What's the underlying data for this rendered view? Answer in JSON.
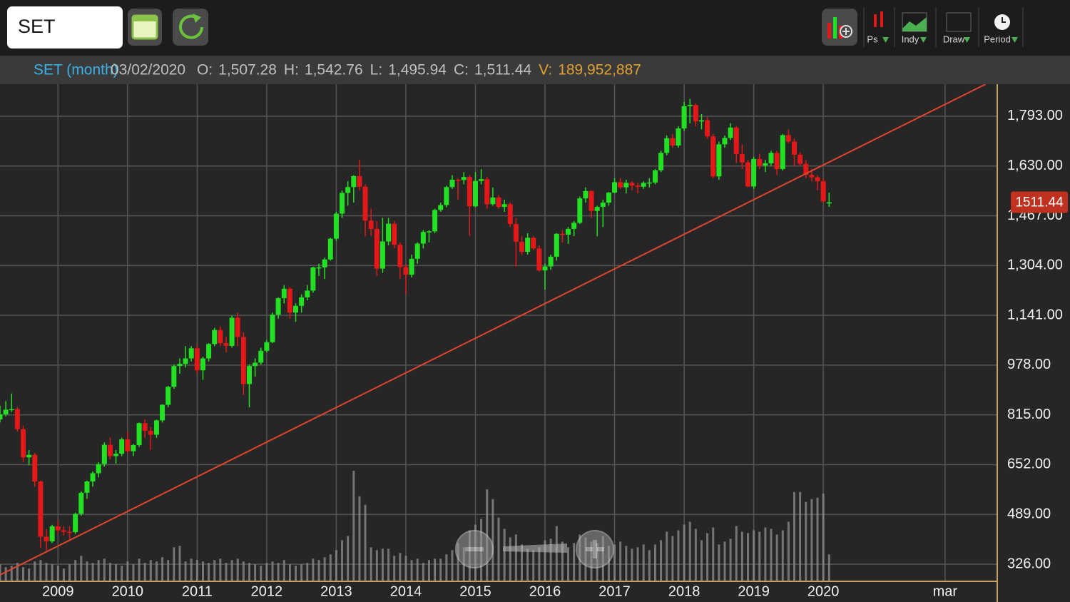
{
  "toolbar": {
    "symbol": "SET",
    "tools": [
      "Ps",
      "Indy",
      "Draw",
      "Period"
    ]
  },
  "info": {
    "name": "SET (month)",
    "date": "03/02/2020",
    "fields": [
      {
        "label": "O:",
        "value": "1,507.28"
      },
      {
        "label": "H:",
        "value": "1,542.76"
      },
      {
        "label": "L:",
        "value": "1,495.94"
      },
      {
        "label": "C:",
        "value": "1,511.44"
      },
      {
        "label": "V:",
        "value": "189,952,887"
      }
    ]
  },
  "chart_data": {
    "type": "candlestick",
    "up_color": "#22e022",
    "down_color": "#e41818",
    "volume_color": "#8a8a8a",
    "grid": true,
    "x": [
      "2008-03",
      "2008-04",
      "2008-05",
      "2008-06",
      "2008-07",
      "2008-08",
      "2008-09",
      "2008-10",
      "2008-11",
      "2008-12",
      "2009-01",
      "2009-02",
      "2009-03",
      "2009-04",
      "2009-05",
      "2009-06",
      "2009-07",
      "2009-08",
      "2009-09",
      "2009-10",
      "2009-11",
      "2009-12",
      "2010-01",
      "2010-02",
      "2010-03",
      "2010-04",
      "2010-05",
      "2010-06",
      "2010-07",
      "2010-08",
      "2010-09",
      "2010-10",
      "2010-11",
      "2010-12",
      "2011-01",
      "2011-02",
      "2011-03",
      "2011-04",
      "2011-05",
      "2011-06",
      "2011-07",
      "2011-08",
      "2011-09",
      "2011-10",
      "2011-11",
      "2011-12",
      "2012-01",
      "2012-02",
      "2012-03",
      "2012-04",
      "2012-05",
      "2012-06",
      "2012-07",
      "2012-08",
      "2012-09",
      "2012-10",
      "2012-11",
      "2012-12",
      "2013-01",
      "2013-02",
      "2013-03",
      "2013-04",
      "2013-05",
      "2013-06",
      "2013-07",
      "2013-08",
      "2013-09",
      "2013-10",
      "2013-11",
      "2013-12",
      "2014-01",
      "2014-02",
      "2014-03",
      "2014-04",
      "2014-05",
      "2014-06",
      "2014-07",
      "2014-08",
      "2014-09",
      "2014-10",
      "2014-11",
      "2014-12",
      "2015-01",
      "2015-02",
      "2015-03",
      "2015-04",
      "2015-05",
      "2015-06",
      "2015-07",
      "2015-08",
      "2015-09",
      "2015-10",
      "2015-11",
      "2015-12",
      "2016-01",
      "2016-02",
      "2016-03",
      "2016-04",
      "2016-05",
      "2016-06",
      "2016-07",
      "2016-08",
      "2016-09",
      "2016-10",
      "2016-11",
      "2016-12",
      "2017-01",
      "2017-02",
      "2017-03",
      "2017-04",
      "2017-05",
      "2017-06",
      "2017-07",
      "2017-08",
      "2017-09",
      "2017-10",
      "2017-11",
      "2017-12",
      "2018-01",
      "2018-02",
      "2018-03",
      "2018-04",
      "2018-05",
      "2018-06",
      "2018-07",
      "2018-08",
      "2018-09",
      "2018-10",
      "2018-11",
      "2018-12",
      "2019-01",
      "2019-02",
      "2019-03",
      "2019-04",
      "2019-05",
      "2019-06",
      "2019-07",
      "2019-08",
      "2019-09",
      "2019-10",
      "2019-11",
      "2019-12",
      "2020-01",
      "2020-02"
    ],
    "ohlc": [
      [
        800,
        845,
        790,
        817
      ],
      [
        817,
        860,
        810,
        832
      ],
      [
        832,
        885,
        825,
        834
      ],
      [
        834,
        840,
        760,
        768
      ],
      [
        768,
        780,
        660,
        676
      ],
      [
        676,
        700,
        650,
        684
      ],
      [
        684,
        690,
        580,
        597
      ],
      [
        597,
        600,
        380,
        416
      ],
      [
        416,
        440,
        370,
        401
      ],
      [
        401,
        455,
        395,
        450
      ],
      [
        450,
        470,
        425,
        437
      ],
      [
        437,
        450,
        420,
        432
      ],
      [
        432,
        450,
        405,
        431
      ],
      [
        431,
        495,
        425,
        491
      ],
      [
        491,
        565,
        485,
        560
      ],
      [
        560,
        600,
        540,
        597
      ],
      [
        597,
        630,
        580,
        624
      ],
      [
        624,
        660,
        610,
        654
      ],
      [
        654,
        725,
        645,
        717
      ],
      [
        717,
        740,
        670,
        680
      ],
      [
        680,
        700,
        655,
        688
      ],
      [
        688,
        740,
        680,
        735
      ],
      [
        735,
        760,
        690,
        696
      ],
      [
        696,
        720,
        680,
        716
      ],
      [
        716,
        790,
        710,
        788
      ],
      [
        788,
        800,
        740,
        763
      ],
      [
        763,
        775,
        700,
        750
      ],
      [
        750,
        800,
        740,
        797
      ],
      [
        797,
        850,
        790,
        848
      ],
      [
        848,
        910,
        840,
        907
      ],
      [
        907,
        980,
        900,
        975
      ],
      [
        975,
        1000,
        950,
        982
      ],
      [
        982,
        1040,
        970,
        1000
      ],
      [
        1000,
        1040,
        990,
        1033
      ],
      [
        1033,
        1045,
        950,
        961
      ],
      [
        961,
        1005,
        930,
        1000
      ],
      [
        1000,
        1050,
        990,
        1047
      ],
      [
        1047,
        1100,
        1040,
        1093
      ],
      [
        1093,
        1105,
        1040,
        1050
      ],
      [
        1050,
        1070,
        1020,
        1041
      ],
      [
        1041,
        1140,
        1035,
        1133
      ],
      [
        1133,
        1150,
        1040,
        1070
      ],
      [
        1070,
        1085,
        880,
        916
      ],
      [
        916,
        980,
        840,
        975
      ],
      [
        975,
        1000,
        940,
        986
      ],
      [
        986,
        1035,
        980,
        1025
      ],
      [
        1025,
        1060,
        1020,
        1053
      ],
      [
        1053,
        1150,
        1050,
        1143
      ],
      [
        1143,
        1200,
        1130,
        1197
      ],
      [
        1197,
        1240,
        1180,
        1228
      ],
      [
        1228,
        1235,
        1130,
        1150
      ],
      [
        1150,
        1180,
        1120,
        1172
      ],
      [
        1172,
        1210,
        1150,
        1200
      ],
      [
        1200,
        1240,
        1190,
        1222
      ],
      [
        1222,
        1300,
        1215,
        1298
      ],
      [
        1298,
        1310,
        1270,
        1298
      ],
      [
        1298,
        1330,
        1260,
        1324
      ],
      [
        1324,
        1395,
        1320,
        1392
      ],
      [
        1392,
        1480,
        1385,
        1474
      ],
      [
        1474,
        1550,
        1460,
        1542
      ],
      [
        1542,
        1580,
        1500,
        1561
      ],
      [
        1561,
        1600,
        1510,
        1597
      ],
      [
        1597,
        1650,
        1550,
        1562
      ],
      [
        1562,
        1570,
        1400,
        1451
      ],
      [
        1451,
        1490,
        1400,
        1424
      ],
      [
        1424,
        1450,
        1270,
        1294
      ],
      [
        1294,
        1460,
        1280,
        1383
      ],
      [
        1383,
        1460,
        1370,
        1441
      ],
      [
        1441,
        1450,
        1360,
        1372
      ],
      [
        1372,
        1380,
        1260,
        1299
      ],
      [
        1299,
        1310,
        1210,
        1274
      ],
      [
        1274,
        1340,
        1265,
        1326
      ],
      [
        1326,
        1380,
        1310,
        1376
      ],
      [
        1376,
        1420,
        1360,
        1414
      ],
      [
        1414,
        1420,
        1380,
        1416
      ],
      [
        1416,
        1490,
        1410,
        1486
      ],
      [
        1486,
        1510,
        1480,
        1502
      ],
      [
        1502,
        1565,
        1495,
        1561
      ],
      [
        1561,
        1600,
        1555,
        1585
      ],
      [
        1585,
        1590,
        1520,
        1584
      ],
      [
        1584,
        1610,
        1570,
        1594
      ],
      [
        1594,
        1600,
        1400,
        1498
      ],
      [
        1498,
        1610,
        1495,
        1581
      ],
      [
        1581,
        1620,
        1570,
        1587
      ],
      [
        1587,
        1595,
        1490,
        1505
      ],
      [
        1505,
        1560,
        1500,
        1527
      ],
      [
        1527,
        1535,
        1490,
        1496
      ],
      [
        1496,
        1520,
        1480,
        1505
      ],
      [
        1505,
        1510,
        1430,
        1440
      ],
      [
        1440,
        1460,
        1300,
        1382
      ],
      [
        1382,
        1400,
        1340,
        1349
      ],
      [
        1349,
        1410,
        1340,
        1395
      ],
      [
        1395,
        1400,
        1355,
        1360
      ],
      [
        1360,
        1370,
        1285,
        1288
      ],
      [
        1288,
        1310,
        1225,
        1301
      ],
      [
        1301,
        1340,
        1290,
        1333
      ],
      [
        1333,
        1410,
        1320,
        1408
      ],
      [
        1408,
        1420,
        1380,
        1405
      ],
      [
        1405,
        1430,
        1375,
        1424
      ],
      [
        1424,
        1450,
        1400,
        1444
      ],
      [
        1444,
        1530,
        1440,
        1524
      ],
      [
        1524,
        1560,
        1510,
        1548
      ],
      [
        1548,
        1550,
        1460,
        1483
      ],
      [
        1483,
        1500,
        1400,
        1496
      ],
      [
        1496,
        1520,
        1430,
        1510
      ],
      [
        1510,
        1545,
        1500,
        1543
      ],
      [
        1543,
        1590,
        1540,
        1577
      ],
      [
        1577,
        1590,
        1555,
        1560
      ],
      [
        1560,
        1585,
        1540,
        1575
      ],
      [
        1575,
        1580,
        1550,
        1566
      ],
      [
        1566,
        1575,
        1540,
        1562
      ],
      [
        1562,
        1580,
        1555,
        1575
      ],
      [
        1575,
        1590,
        1560,
        1576
      ],
      [
        1576,
        1620,
        1570,
        1616
      ],
      [
        1616,
        1680,
        1610,
        1673
      ],
      [
        1673,
        1730,
        1665,
        1721
      ],
      [
        1721,
        1735,
        1690,
        1697
      ],
      [
        1697,
        1760,
        1690,
        1753
      ],
      [
        1753,
        1840,
        1745,
        1826
      ],
      [
        1826,
        1850,
        1770,
        1830
      ],
      [
        1830,
        1835,
        1760,
        1776
      ],
      [
        1776,
        1800,
        1750,
        1780
      ],
      [
        1780,
        1790,
        1720,
        1727
      ],
      [
        1727,
        1735,
        1590,
        1596
      ],
      [
        1596,
        1710,
        1585,
        1701
      ],
      [
        1701,
        1730,
        1690,
        1722
      ],
      [
        1722,
        1770,
        1715,
        1756
      ],
      [
        1756,
        1760,
        1640,
        1669
      ],
      [
        1669,
        1700,
        1620,
        1642
      ],
      [
        1642,
        1650,
        1560,
        1563
      ],
      [
        1563,
        1660,
        1555,
        1653
      ],
      [
        1653,
        1670,
        1620,
        1631
      ],
      [
        1631,
        1650,
        1610,
        1639
      ],
      [
        1639,
        1680,
        1630,
        1673
      ],
      [
        1673,
        1680,
        1600,
        1620
      ],
      [
        1620,
        1735,
        1615,
        1731
      ],
      [
        1731,
        1750,
        1705,
        1710
      ],
      [
        1710,
        1720,
        1630,
        1667
      ],
      [
        1667,
        1675,
        1630,
        1637
      ],
      [
        1637,
        1650,
        1590,
        1601
      ],
      [
        1601,
        1620,
        1580,
        1593
      ],
      [
        1593,
        1600,
        1550,
        1580
      ],
      [
        1580,
        1590,
        1510,
        1514
      ],
      [
        1507.28,
        1542.76,
        1495.94,
        1511.44
      ]
    ],
    "volume": [
      120000000.0,
      100000000.0,
      110000000.0,
      130000000.0,
      100000000.0,
      90000000.0,
      140000000.0,
      150000000.0,
      130000000.0,
      120000000.0,
      110000000.0,
      90000000.0,
      120000000.0,
      150000000.0,
      180000000.0,
      140000000.0,
      130000000.0,
      150000000.0,
      160000000.0,
      130000000.0,
      120000000.0,
      110000000.0,
      140000000.0,
      120000000.0,
      160000000.0,
      130000000.0,
      150000000.0,
      140000000.0,
      170000000.0,
      150000000.0,
      240000000.0,
      250000000.0,
      140000000.0,
      160000000.0,
      150000000.0,
      140000000.0,
      130000000.0,
      150000000.0,
      160000000.0,
      130000000.0,
      150000000.0,
      160000000.0,
      140000000.0,
      130000000.0,
      120000000.0,
      110000000.0,
      130000000.0,
      140000000.0,
      130000000.0,
      150000000.0,
      120000000.0,
      110000000.0,
      120000000.0,
      130000000.0,
      160000000.0,
      150000000.0,
      170000000.0,
      190000000.0,
      220000000.0,
      290000000.0,
      320000000.0,
      780000000.0,
      600000000.0,
      540000000.0,
      240000000.0,
      220000000.0,
      230000000.0,
      230000000.0,
      180000000.0,
      200000000.0,
      180000000.0,
      150000000.0,
      160000000.0,
      130000000.0,
      150000000.0,
      160000000.0,
      160000000.0,
      190000000.0,
      220000000.0,
      270000000.0,
      240000000.0,
      360000000.0,
      400000000.0,
      440000000.0,
      650000000.0,
      580000000.0,
      450000000.0,
      370000000.0,
      310000000.0,
      330000000.0,
      260000000.0,
      230000000.0,
      220000000.0,
      240000000.0,
      290000000.0,
      300000000.0,
      390000000.0,
      280000000.0,
      240000000.0,
      270000000.0,
      330000000.0,
      310000000.0,
      280000000.0,
      270000000.0,
      320000000.0,
      250000000.0,
      260000000.0,
      280000000.0,
      250000000.0,
      230000000.0,
      240000000.0,
      260000000.0,
      220000000.0,
      260000000.0,
      290000000.0,
      350000000.0,
      320000000.0,
      360000000.0,
      400000000.0,
      420000000.0,
      370000000.0,
      290000000.0,
      340000000.0,
      380000000.0,
      260000000.0,
      280000000.0,
      300000000.0,
      390000000.0,
      350000000.0,
      340000000.0,
      360000000.0,
      350000000.0,
      380000000.0,
      370000000.0,
      330000000.0,
      360000000.0,
      420000000.0,
      630000000.0,
      630000000.0,
      560000000.0,
      580000000.0,
      590000000.0,
      620000000.0,
      189952887
    ],
    "trendline": {
      "x": [
        "2008-03",
        "2022-05"
      ],
      "values": [
        291,
        1898
      ],
      "color": "#e0452f"
    },
    "xlim": [
      "2008-03",
      "2022-07"
    ],
    "xticks": [
      {
        "value": "2009-01",
        "label": "2009"
      },
      {
        "value": "2010-01",
        "label": "2010"
      },
      {
        "value": "2011-01",
        "label": "2011"
      },
      {
        "value": "2012-01",
        "label": "2012"
      },
      {
        "value": "2013-01",
        "label": "2013"
      },
      {
        "value": "2014-01",
        "label": "2014"
      },
      {
        "value": "2015-01",
        "label": "2015"
      },
      {
        "value": "2016-01",
        "label": "2016"
      },
      {
        "value": "2017-01",
        "label": "2017"
      },
      {
        "value": "2018-01",
        "label": "2018"
      },
      {
        "value": "2019-01",
        "label": "2019"
      },
      {
        "value": "2020-01",
        "label": "2020"
      },
      {
        "value": "2021-10",
        "label": "mar"
      }
    ],
    "ylim": [
      270,
      1898
    ],
    "yticks": [
      {
        "value": 326,
        "label": "326.00"
      },
      {
        "value": 489,
        "label": "489.00"
      },
      {
        "value": 652,
        "label": "652.00"
      },
      {
        "value": 815,
        "label": "815.00"
      },
      {
        "value": 978,
        "label": "978.00"
      },
      {
        "value": 1141,
        "label": "1,141.00"
      },
      {
        "value": 1304,
        "label": "1,304.00"
      },
      {
        "value": 1467,
        "label": "1,467.00"
      },
      {
        "value": 1630,
        "label": "1,630.00"
      },
      {
        "value": 1793,
        "label": "1,793.00"
      }
    ]
  }
}
